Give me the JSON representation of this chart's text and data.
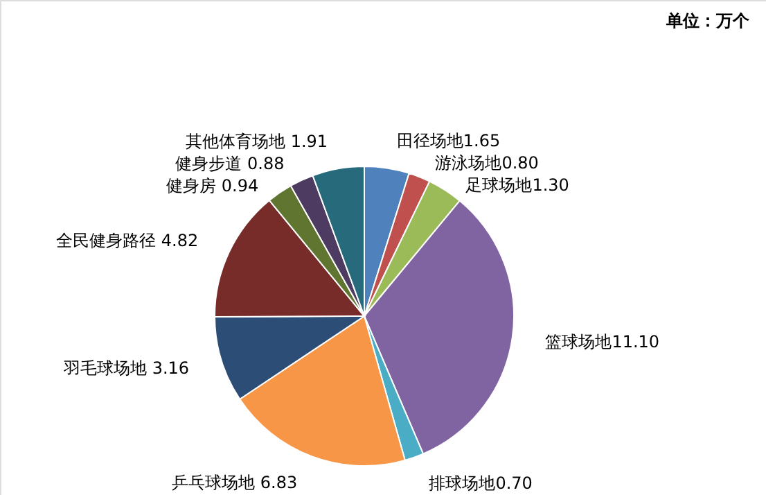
{
  "chart_data": {
    "type": "pie",
    "categories": [
      "田径场地",
      "游泳场地",
      "足球场地",
      "篮球场地",
      "排球场地",
      "乒乓球场地",
      "羽毛球场地",
      "全民健身路径",
      "健身房",
      "健身步道",
      "其他体育场地"
    ],
    "values": [
      1.65,
      0.8,
      1.3,
      11.1,
      0.7,
      6.83,
      3.16,
      4.82,
      0.94,
      0.88,
      1.91
    ],
    "value_labels": [
      "1.65",
      "0.80",
      "1.30",
      "11.10",
      "0.70",
      "6.83",
      "3.16",
      "4.82",
      "0.94",
      "0.88",
      "1.91"
    ],
    "colors": [
      "#4f81bd",
      "#c0504d",
      "#9bbb59",
      "#8064a2",
      "#4bacc6",
      "#f79646",
      "#2c4d75",
      "#772c2a",
      "#5f7530",
      "#4d3b62",
      "#276a7c"
    ],
    "annotations": [
      "单位：万个"
    ]
  }
}
